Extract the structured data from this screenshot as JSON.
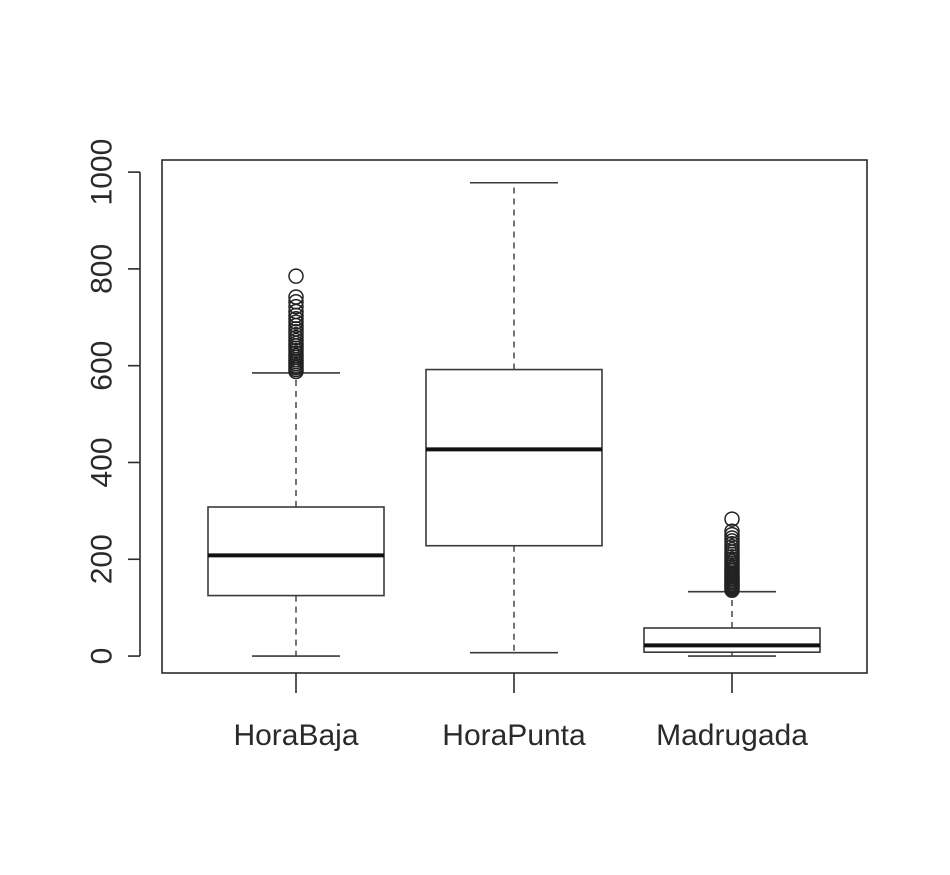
{
  "chart_data": {
    "type": "box",
    "title": "",
    "xlabel": "",
    "ylabel": "",
    "categories": [
      "HoraBaja",
      "HoraPunta",
      "Madrugada"
    ],
    "ylim": [
      -35,
      1025
    ],
    "yticks": [
      0,
      200,
      400,
      600,
      800,
      1000
    ],
    "ytick_labels": [
      "0",
      "200",
      "400",
      "600",
      "800",
      "1000"
    ],
    "grid": false,
    "legend": "none",
    "boxes": [
      {
        "category": "HoraBaja",
        "whisker_low": 0,
        "q1": 125,
        "median": 208,
        "q3": 308,
        "whisker_high": 585,
        "outliers": [
          588,
          592,
          596,
          600,
          604,
          608,
          612,
          617,
          621,
          626,
          631,
          636,
          641,
          646,
          652,
          658,
          664,
          670,
          676,
          683,
          690,
          697,
          704,
          712,
          722,
          732,
          742,
          785
        ]
      },
      {
        "category": "HoraPunta",
        "whisker_low": 7,
        "q1": 228,
        "median": 427,
        "q3": 592,
        "whisker_high": 978,
        "outliers": []
      },
      {
        "category": "Madrugada",
        "whisker_low": 0,
        "q1": 8,
        "median": 22,
        "q3": 58,
        "whisker_high": 133,
        "outliers": [
          136,
          139,
          142,
          145,
          148,
          151,
          154,
          157,
          160,
          163,
          166,
          169,
          172,
          176,
          180,
          184,
          188,
          192,
          196,
          200,
          205,
          210,
          215,
          220,
          226,
          232,
          238,
          244,
          251,
          258,
          283
        ]
      }
    ]
  },
  "style": {
    "axis_color": "#2b2b2b",
    "box_color": "#3a3a3a",
    "median_color": "#111111",
    "background": "#ffffff"
  }
}
